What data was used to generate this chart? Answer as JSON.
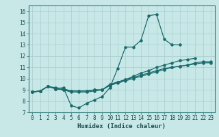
{
  "xlabel": "Humidex (Indice chaleur)",
  "xlim": [
    -0.5,
    23.5
  ],
  "ylim": [
    7,
    16.5
  ],
  "yticks": [
    7,
    8,
    9,
    10,
    11,
    12,
    13,
    14,
    15,
    16
  ],
  "xticks": [
    0,
    1,
    2,
    3,
    4,
    5,
    6,
    7,
    8,
    9,
    10,
    11,
    12,
    13,
    14,
    15,
    16,
    17,
    18,
    19,
    20,
    21,
    22,
    23
  ],
  "bg_color": "#c8e8e8",
  "grid_color": "#a8cece",
  "line_color": "#1a6b6b",
  "line_width": 0.9,
  "marker_size": 2.2,
  "lines": [
    {
      "x": [
        0,
        1,
        2,
        3,
        4,
        5,
        6,
        7,
        8,
        9,
        10,
        11,
        12,
        13,
        14,
        15,
        16,
        17,
        18,
        19
      ],
      "y": [
        8.8,
        8.9,
        9.3,
        9.1,
        9.2,
        7.6,
        7.4,
        7.8,
        8.1,
        8.4,
        9.2,
        10.9,
        12.8,
        12.8,
        13.4,
        15.6,
        15.7,
        13.5,
        13.0,
        13.0
      ]
    },
    {
      "x": [
        0,
        1,
        2,
        3,
        4,
        5,
        6,
        7,
        8,
        9,
        10,
        11,
        12,
        13,
        14,
        15,
        16,
        17,
        18,
        19,
        20,
        21
      ],
      "y": [
        8.8,
        8.9,
        9.3,
        9.1,
        9.0,
        8.9,
        8.9,
        8.9,
        9.0,
        9.0,
        9.5,
        9.7,
        9.9,
        10.2,
        10.5,
        10.7,
        11.0,
        11.2,
        11.4,
        11.6,
        11.7,
        11.8
      ]
    },
    {
      "x": [
        0,
        1,
        2,
        3,
        4,
        5,
        6,
        7,
        8,
        9,
        10,
        11,
        12,
        13,
        14,
        15,
        16,
        17,
        18,
        19,
        20,
        21,
        22,
        23
      ],
      "y": [
        8.8,
        8.9,
        9.3,
        9.1,
        9.0,
        8.8,
        8.8,
        8.8,
        8.9,
        9.0,
        9.4,
        9.6,
        9.8,
        10.0,
        10.2,
        10.4,
        10.6,
        10.8,
        11.0,
        11.1,
        11.2,
        11.3,
        11.4,
        11.4
      ]
    },
    {
      "x": [
        0,
        1,
        2,
        3,
        4,
        5,
        6,
        7,
        8,
        9,
        10,
        11,
        12,
        13,
        14,
        15,
        16,
        17,
        18,
        19,
        20,
        21,
        22,
        23
      ],
      "y": [
        8.8,
        8.9,
        9.3,
        9.2,
        9.1,
        8.9,
        8.9,
        8.9,
        9.0,
        9.0,
        9.4,
        9.7,
        9.9,
        10.1,
        10.3,
        10.5,
        10.7,
        10.9,
        11.0,
        11.1,
        11.2,
        11.4,
        11.5,
        11.5
      ]
    }
  ]
}
